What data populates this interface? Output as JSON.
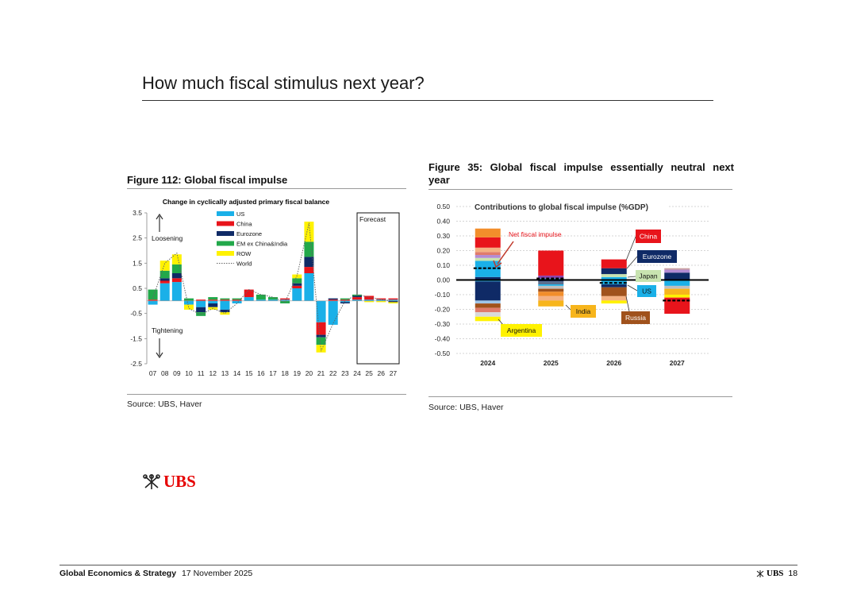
{
  "page": {
    "title": "How much fiscal stimulus next year?"
  },
  "left_figure": {
    "title": "Figure 112: Global fiscal impulse",
    "source": "Source: UBS, Haver"
  },
  "right_figure": {
    "title_line1": "Figure 35: Global fiscal impulse essentially neutral next",
    "title_line2": "year",
    "source": "Source: UBS, Haver"
  },
  "logo": {
    "text": "UBS"
  },
  "footer": {
    "section": "Global Economics & Strategy",
    "date": "17 November 2025",
    "brand": "UBS",
    "page_number": "18"
  },
  "colors": {
    "us": "#1ab0e8",
    "china": "#e8141b",
    "eurozone": "#0f2a66",
    "em": "#22a84a",
    "row": "#fff200",
    "world": "#666666",
    "japan": "#c8e3b0",
    "india": "#f7b51c",
    "russia": "#a0521c",
    "argentina": "#fff200"
  },
  "chart_data": [
    {
      "type": "bar",
      "stacked": true,
      "title": "Change in cyclically adjusted primary fiscal balance",
      "categories": [
        "07",
        "08",
        "09",
        "10",
        "11",
        "12",
        "13",
        "14",
        "15",
        "16",
        "17",
        "18",
        "19",
        "20",
        "21",
        "22",
        "23",
        "24",
        "25",
        "26",
        "27"
      ],
      "ylim": [
        -2.5,
        3.5
      ],
      "yticks": [
        "3.5",
        "2.5",
        "1.5",
        "0.5",
        "-0.5",
        "-1.5",
        "-2.5"
      ],
      "series": [
        {
          "name": "US",
          "values": [
            -0.15,
            0.7,
            0.75,
            -0.15,
            -0.25,
            -0.1,
            -0.35,
            -0.1,
            0.15,
            0.05,
            0.05,
            0.05,
            0.5,
            1.1,
            -0.85,
            -0.95,
            -0.05,
            0.05,
            0.05,
            0.05,
            0.05
          ]
        },
        {
          "name": "China",
          "values": [
            0.05,
            0.1,
            0.15,
            0.0,
            0.05,
            0.05,
            0.05,
            0.05,
            0.3,
            0.0,
            0.0,
            0.05,
            0.1,
            0.25,
            -0.5,
            0.05,
            0.05,
            0.1,
            0.15,
            0.05,
            0.05
          ]
        },
        {
          "name": "Eurozone",
          "values": [
            0.0,
            0.1,
            0.2,
            0.0,
            -0.2,
            -0.15,
            -0.1,
            0.0,
            0.0,
            0.0,
            0.0,
            0.0,
            0.1,
            0.4,
            -0.1,
            0.05,
            -0.05,
            0.05,
            0.0,
            0.0,
            -0.05
          ]
        },
        {
          "name": "EM ex China&India",
          "values": [
            0.4,
            0.3,
            0.35,
            0.1,
            -0.15,
            0.1,
            0.05,
            0.05,
            0.0,
            0.2,
            0.1,
            -0.1,
            0.2,
            0.6,
            -0.3,
            0.0,
            0.05,
            0.05,
            0.0,
            0.0,
            0.0
          ]
        },
        {
          "name": "ROW",
          "values": [
            0.0,
            0.4,
            0.4,
            -0.2,
            0.0,
            -0.1,
            -0.1,
            0.0,
            0.0,
            0.0,
            0.0,
            0.0,
            0.15,
            0.8,
            -0.3,
            0.0,
            0.0,
            0.0,
            -0.05,
            -0.05,
            -0.05
          ]
        }
      ],
      "world": {
        "name": "World",
        "values": [
          0.1,
          1.5,
          1.9,
          -0.3,
          -0.55,
          -0.3,
          -0.5,
          -0.1,
          0.45,
          0.25,
          0.15,
          -0.05,
          1.0,
          3.1,
          -2.0,
          -0.9,
          0.0,
          0.25,
          0.15,
          0.05,
          0.0
        ]
      },
      "annotations": {
        "up": "Loosening",
        "down": "Tightening",
        "forecast": "Forecast"
      },
      "legend_position": "top-center"
    },
    {
      "type": "bar",
      "stacked": true,
      "title": "Contributions to global fiscal impulse (%GDP)",
      "categories": [
        "2024",
        "2025",
        "2026",
        "2027"
      ],
      "ylim": [
        -0.5,
        0.5
      ],
      "yticks": [
        "0.50",
        "0.40",
        "0.30",
        "0.20",
        "0.10",
        "0.00",
        "-0.10",
        "-0.20",
        "-0.30",
        "-0.40",
        "-0.50"
      ],
      "positive": [
        [
          {
            "c": "#0f2a66",
            "v": 0.02
          },
          {
            "c": "#1ab0e8",
            "v": 0.11
          },
          {
            "c": "#c8e3b0",
            "v": 0.02
          },
          {
            "c": "#b38bd4",
            "v": 0.02
          },
          {
            "c": "#e07b6b",
            "v": 0.02
          },
          {
            "c": "#f4b183",
            "v": 0.03
          },
          {
            "c": "#e8141b",
            "v": 0.07
          },
          {
            "c": "#f28e2b",
            "v": 0.06
          }
        ],
        [
          {
            "c": "#1ab0e8",
            "v": 0.01
          },
          {
            "c": "#8e44ad",
            "v": 0.02
          },
          {
            "c": "#e8141b",
            "v": 0.17
          }
        ],
        [
          {
            "c": "#1ab0e8",
            "v": 0.02
          },
          {
            "c": "#c8e3b0",
            "v": 0.02
          },
          {
            "c": "#0f2a66",
            "v": 0.04
          },
          {
            "c": "#e8141b",
            "v": 0.06
          }
        ],
        [
          {
            "c": "#0f2a66",
            "v": 0.05
          },
          {
            "c": "#b38bd4",
            "v": 0.02
          },
          {
            "c": "#c9a0a0",
            "v": 0.01
          }
        ]
      ],
      "negative": [
        [
          {
            "c": "#1ab0e8",
            "v": -0.01
          },
          {
            "c": "#0f2a66",
            "v": -0.13
          },
          {
            "c": "#9fc5e8",
            "v": -0.02
          },
          {
            "c": "#a0521c",
            "v": -0.03
          },
          {
            "c": "#e07b6b",
            "v": -0.03
          },
          {
            "c": "#d9d9d9",
            "v": -0.03
          },
          {
            "c": "#fff200",
            "v": -0.03
          }
        ],
        [
          {
            "c": "#0f2a66",
            "v": -0.01
          },
          {
            "c": "#5b6f8f",
            "v": -0.02
          },
          {
            "c": "#1ab0e8",
            "v": -0.01
          },
          {
            "c": "#bfbfbf",
            "v": -0.02
          },
          {
            "c": "#a0521c",
            "v": -0.02
          },
          {
            "c": "#f28e2b",
            "v": -0.03
          },
          {
            "c": "#f4b183",
            "v": -0.03
          },
          {
            "c": "#f7b51c",
            "v": -0.04
          }
        ],
        [
          {
            "c": "#1ab0e8",
            "v": -0.03
          },
          {
            "c": "#0f2a66",
            "v": -0.02
          },
          {
            "c": "#a0521c",
            "v": -0.06
          },
          {
            "c": "#f4b183",
            "v": -0.03
          },
          {
            "c": "#fff200",
            "v": -0.02
          }
        ],
        [
          {
            "c": "#1ab0e8",
            "v": -0.04
          },
          {
            "c": "#bfbfbf",
            "v": -0.02
          },
          {
            "c": "#f7b51c",
            "v": -0.04
          },
          {
            "c": "#fff200",
            "v": -0.02
          },
          {
            "c": "#e8141b",
            "v": -0.11
          }
        ]
      ],
      "net_fiscal_impulse": [
        0.08,
        0.01,
        -0.02,
        -0.14
      ],
      "labels": {
        "net": "Net fiscal impulse",
        "china": "China",
        "eurozone": "Eurozone",
        "japan": "Japan",
        "us": "US",
        "india": "India",
        "russia": "Russia",
        "argentina": "Argentina"
      }
    }
  ]
}
